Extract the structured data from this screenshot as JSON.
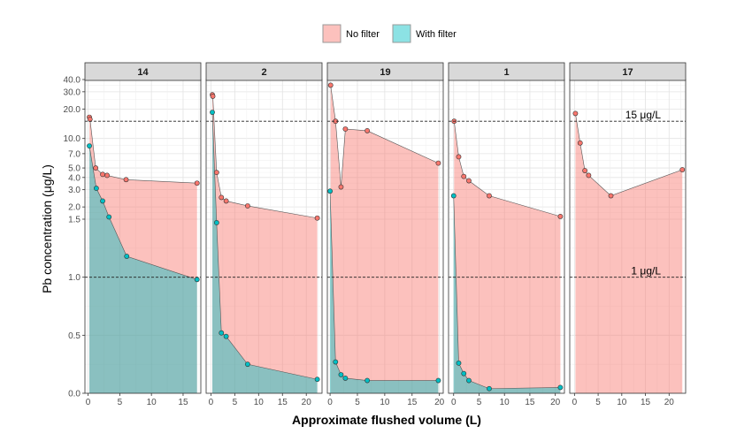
{
  "chart_data": {
    "type": "area",
    "xlabel": "Approximate flushed volume (L)",
    "ylabel": "Pb concentration (μg/L)",
    "legend": {
      "placement": "top-center",
      "entries": [
        {
          "label": "No filter",
          "color": "#F8766D"
        },
        {
          "label": "With filter",
          "color": "#00BFC4"
        }
      ]
    },
    "y_scale": "piecewise: linear 0–1.5, log 1.5–40",
    "y_ticks": [
      0.0,
      0.5,
      1.0,
      1.5,
      2.0,
      3.0,
      4.0,
      5.0,
      7.0,
      10.0,
      20.0,
      30.0,
      40.0
    ],
    "y_tick_labels": [
      "0.0",
      "0.5",
      "1.0",
      "1.5",
      "2.0",
      "3.0",
      "4.0",
      "5.0",
      "7.0",
      "10.0",
      "20.0",
      "30.0",
      "40.0"
    ],
    "reference_lines": [
      {
        "value": 15,
        "label": "15 μg/L",
        "style": "dashed"
      },
      {
        "value": 1,
        "label": "1 μg/L",
        "style": "dashed"
      }
    ],
    "panels": [
      {
        "title": "14",
        "xlim": [
          -0.5,
          17.8
        ],
        "x_ticks": [
          0,
          5,
          10,
          15
        ],
        "series": [
          {
            "name": "No filter",
            "x": [
              0.2,
              0.3,
              1.2,
              2.3,
              3.0,
              6.0,
              17.2
            ],
            "y": [
              16.5,
              15.7,
              5.0,
              4.3,
              4.2,
              3.8,
              3.5
            ]
          },
          {
            "name": "With filter",
            "x": [
              0.2,
              1.3,
              2.3,
              3.3,
              6.1,
              17.2
            ],
            "y": [
              8.4,
              3.1,
              2.3,
              1.58,
              1.18,
              0.98
            ]
          }
        ]
      },
      {
        "title": "2",
        "xlim": [
          -1,
          23.3
        ],
        "x_ticks": [
          0,
          5,
          10,
          15,
          20
        ],
        "series": [
          {
            "name": "No filter",
            "x": [
              0.3,
              0.4,
              1.2,
              2.2,
              3.2,
              7.7,
              22.3
            ],
            "y": [
              28,
              27,
              4.5,
              2.5,
              2.3,
              2.05,
              1.54
            ]
          },
          {
            "name": "With filter",
            "x": [
              0.3,
              1.2,
              2.2,
              3.2,
              7.7,
              22.3
            ],
            "y": [
              18.5,
              1.47,
              0.52,
              0.49,
              0.25,
              0.12
            ]
          }
        ]
      },
      {
        "title": "19",
        "xlim": [
          -0.5,
          20.7
        ],
        "x_ticks": [
          0,
          5,
          10,
          15,
          20
        ],
        "series": [
          {
            "name": "No filter",
            "x": [
              0.1,
              1.0,
              2.0,
              2.8,
              6.8,
              19.8
            ],
            "y": [
              35,
              15,
              3.2,
              12.5,
              12,
              5.6
            ]
          },
          {
            "name": "With filter",
            "x": [
              0.0,
              1.0,
              2.0,
              2.8,
              6.8,
              19.8
            ],
            "y": [
              2.9,
              0.27,
              0.16,
              0.13,
              0.11,
              0.11
            ]
          }
        ]
      },
      {
        "title": "1",
        "xlim": [
          -1,
          21.8
        ],
        "x_ticks": [
          0,
          5,
          10,
          15,
          20
        ],
        "series": [
          {
            "name": "No filter",
            "x": [
              0.1,
              1.0,
              2.0,
              3.0,
              7.0,
              21.0
            ],
            "y": [
              15,
              6.5,
              4.1,
              3.7,
              2.6,
              1.6
            ]
          },
          {
            "name": "With filter",
            "x": [
              0.0,
              1.0,
              2.0,
              3.0,
              7.0,
              21.0
            ],
            "y": [
              2.6,
              0.26,
              0.17,
              0.11,
              0.04,
              0.05
            ]
          }
        ]
      },
      {
        "title": "17",
        "xlim": [
          -1,
          23.5
        ],
        "x_ticks": [
          0,
          5,
          10,
          15,
          20
        ],
        "series": [
          {
            "name": "No filter",
            "x": [
              0.2,
              1.2,
              2.2,
              3.0,
              7.7,
              22.8
            ],
            "y": [
              18,
              9,
              4.7,
              4.2,
              2.6,
              4.8
            ]
          }
        ]
      }
    ]
  }
}
